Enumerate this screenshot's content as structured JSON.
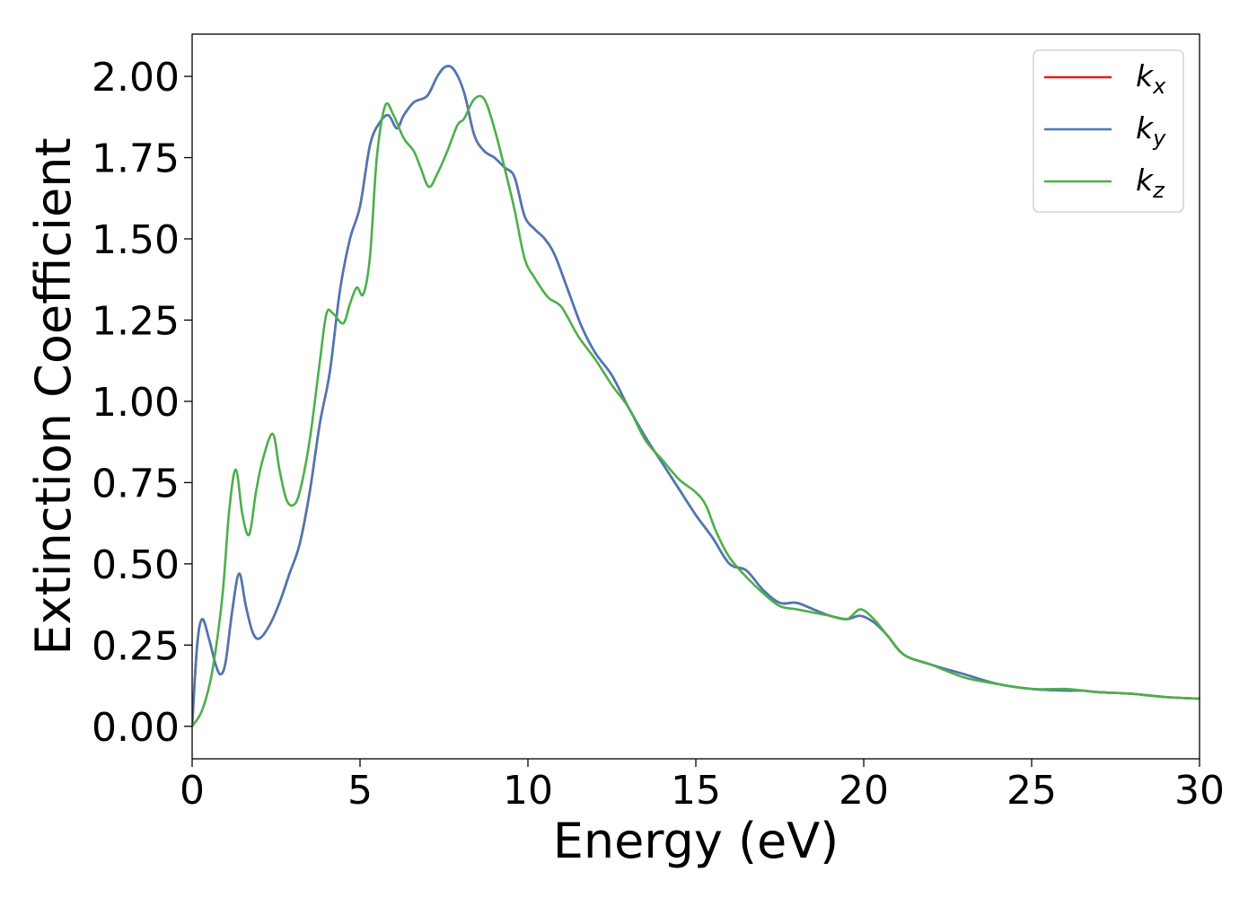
{
  "chart_data": {
    "type": "line",
    "xlabel": "Energy (eV)",
    "ylabel": "Extinction Coefficient",
    "xlim": [
      0,
      30
    ],
    "ylim": [
      -0.1,
      2.13
    ],
    "xticks": [
      0,
      5,
      10,
      15,
      20,
      25,
      30
    ],
    "xtick_labels": [
      "0",
      "5",
      "10",
      "15",
      "20",
      "25",
      "30"
    ],
    "yticks": [
      0,
      0.25,
      0.5,
      0.75,
      1.0,
      1.25,
      1.5,
      1.75,
      2.0
    ],
    "ytick_labels": [
      "0.00",
      "0.25",
      "0.50",
      "0.75",
      "1.00",
      "1.25",
      "1.50",
      "1.75",
      "2.00"
    ],
    "grid": false,
    "legend_position": "top-right",
    "series": [
      {
        "name": "k",
        "subscript": "x",
        "color": "#e41a1c",
        "x": [
          0,
          0.15,
          0.3,
          0.5,
          0.7,
          0.85,
          1.0,
          1.2,
          1.4,
          1.6,
          1.8,
          2.0,
          2.3,
          2.6,
          2.9,
          3.2,
          3.5,
          3.8,
          4.1,
          4.4,
          4.7,
          5.0,
          5.3,
          5.6,
          5.85,
          6.1,
          6.3,
          6.6,
          7.0,
          7.3,
          7.55,
          7.8,
          8.1,
          8.4,
          8.7,
          9.0,
          9.3,
          9.6,
          9.9,
          10.2,
          10.5,
          10.8,
          11.2,
          11.6,
          12.0,
          12.5,
          13.0,
          13.5,
          14.0,
          14.5,
          15.0,
          15.5,
          16.0,
          16.5,
          17.0,
          17.5,
          18.0,
          18.5,
          19.0,
          19.5,
          19.9,
          20.3,
          20.7,
          21.2,
          22.0,
          23.0,
          24.0,
          25.0,
          26.0,
          26.5,
          27.0,
          28.0,
          29.0,
          30.0
        ],
        "values": [
          0.0,
          0.25,
          0.33,
          0.27,
          0.19,
          0.16,
          0.2,
          0.36,
          0.47,
          0.37,
          0.29,
          0.27,
          0.31,
          0.38,
          0.47,
          0.56,
          0.72,
          0.93,
          1.09,
          1.34,
          1.5,
          1.6,
          1.79,
          1.86,
          1.88,
          1.84,
          1.88,
          1.92,
          1.94,
          2.0,
          2.03,
          2.02,
          1.95,
          1.82,
          1.77,
          1.75,
          1.72,
          1.69,
          1.57,
          1.53,
          1.5,
          1.45,
          1.34,
          1.23,
          1.15,
          1.08,
          0.98,
          0.89,
          0.81,
          0.73,
          0.65,
          0.58,
          0.5,
          0.48,
          0.42,
          0.38,
          0.38,
          0.36,
          0.34,
          0.33,
          0.34,
          0.32,
          0.28,
          0.22,
          0.19,
          0.16,
          0.13,
          0.115,
          0.11,
          0.11,
          0.105,
          0.1,
          0.09,
          0.085
        ]
      },
      {
        "name": "k",
        "subscript": "y",
        "color": "#4a78b5",
        "x": [
          0,
          0.15,
          0.3,
          0.5,
          0.7,
          0.85,
          1.0,
          1.2,
          1.4,
          1.6,
          1.8,
          2.0,
          2.3,
          2.6,
          2.9,
          3.2,
          3.5,
          3.8,
          4.1,
          4.4,
          4.7,
          5.0,
          5.3,
          5.6,
          5.85,
          6.1,
          6.3,
          6.6,
          7.0,
          7.3,
          7.55,
          7.8,
          8.1,
          8.4,
          8.7,
          9.0,
          9.3,
          9.6,
          9.9,
          10.2,
          10.5,
          10.8,
          11.2,
          11.6,
          12.0,
          12.5,
          13.0,
          13.5,
          14.0,
          14.5,
          15.0,
          15.5,
          16.0,
          16.5,
          17.0,
          17.5,
          18.0,
          18.5,
          19.0,
          19.5,
          19.9,
          20.3,
          20.7,
          21.2,
          22.0,
          23.0,
          24.0,
          25.0,
          26.0,
          26.5,
          27.0,
          28.0,
          29.0,
          30.0
        ],
        "values": [
          0.0,
          0.25,
          0.33,
          0.27,
          0.19,
          0.16,
          0.2,
          0.36,
          0.47,
          0.37,
          0.29,
          0.27,
          0.31,
          0.38,
          0.47,
          0.56,
          0.72,
          0.93,
          1.09,
          1.34,
          1.5,
          1.6,
          1.79,
          1.86,
          1.88,
          1.84,
          1.88,
          1.92,
          1.94,
          2.0,
          2.03,
          2.02,
          1.95,
          1.82,
          1.77,
          1.75,
          1.72,
          1.69,
          1.57,
          1.53,
          1.5,
          1.45,
          1.34,
          1.23,
          1.15,
          1.08,
          0.98,
          0.89,
          0.81,
          0.73,
          0.65,
          0.58,
          0.5,
          0.48,
          0.42,
          0.38,
          0.38,
          0.36,
          0.34,
          0.33,
          0.34,
          0.32,
          0.28,
          0.22,
          0.19,
          0.16,
          0.13,
          0.115,
          0.11,
          0.11,
          0.105,
          0.1,
          0.09,
          0.085
        ]
      },
      {
        "name": "k",
        "subscript": "z",
        "color": "#4daf4a",
        "x": [
          0,
          0.3,
          0.6,
          0.9,
          1.1,
          1.3,
          1.5,
          1.7,
          1.9,
          2.1,
          2.4,
          2.6,
          2.8,
          3.0,
          3.2,
          3.5,
          3.8,
          4.0,
          4.2,
          4.5,
          4.7,
          4.9,
          5.1,
          5.3,
          5.5,
          5.75,
          6.0,
          6.3,
          6.6,
          6.8,
          7.05,
          7.3,
          7.6,
          7.9,
          8.1,
          8.4,
          8.7,
          9.0,
          9.3,
          9.6,
          9.9,
          10.2,
          10.6,
          11.0,
          11.5,
          12.0,
          12.5,
          13.0,
          13.5,
          14.0,
          14.5,
          15.0,
          15.3,
          15.6,
          16.0,
          16.5,
          17.0,
          17.5,
          18.0,
          18.5,
          19.0,
          19.5,
          19.9,
          20.3,
          20.7,
          21.2,
          22.0,
          23.0,
          24.0,
          25.0,
          26.0,
          26.5,
          27.0,
          28.0,
          29.0,
          30.0
        ],
        "values": [
          0.0,
          0.05,
          0.17,
          0.4,
          0.66,
          0.79,
          0.65,
          0.59,
          0.72,
          0.82,
          0.9,
          0.79,
          0.7,
          0.68,
          0.72,
          0.88,
          1.12,
          1.27,
          1.27,
          1.24,
          1.3,
          1.35,
          1.33,
          1.45,
          1.75,
          1.91,
          1.88,
          1.81,
          1.77,
          1.72,
          1.66,
          1.7,
          1.77,
          1.85,
          1.87,
          1.93,
          1.93,
          1.84,
          1.72,
          1.59,
          1.44,
          1.38,
          1.32,
          1.29,
          1.2,
          1.13,
          1.05,
          0.98,
          0.88,
          0.82,
          0.76,
          0.72,
          0.68,
          0.6,
          0.52,
          0.46,
          0.41,
          0.37,
          0.36,
          0.35,
          0.34,
          0.33,
          0.36,
          0.33,
          0.28,
          0.22,
          0.19,
          0.15,
          0.13,
          0.115,
          0.115,
          0.11,
          0.105,
          0.1,
          0.09,
          0.085
        ]
      }
    ]
  }
}
